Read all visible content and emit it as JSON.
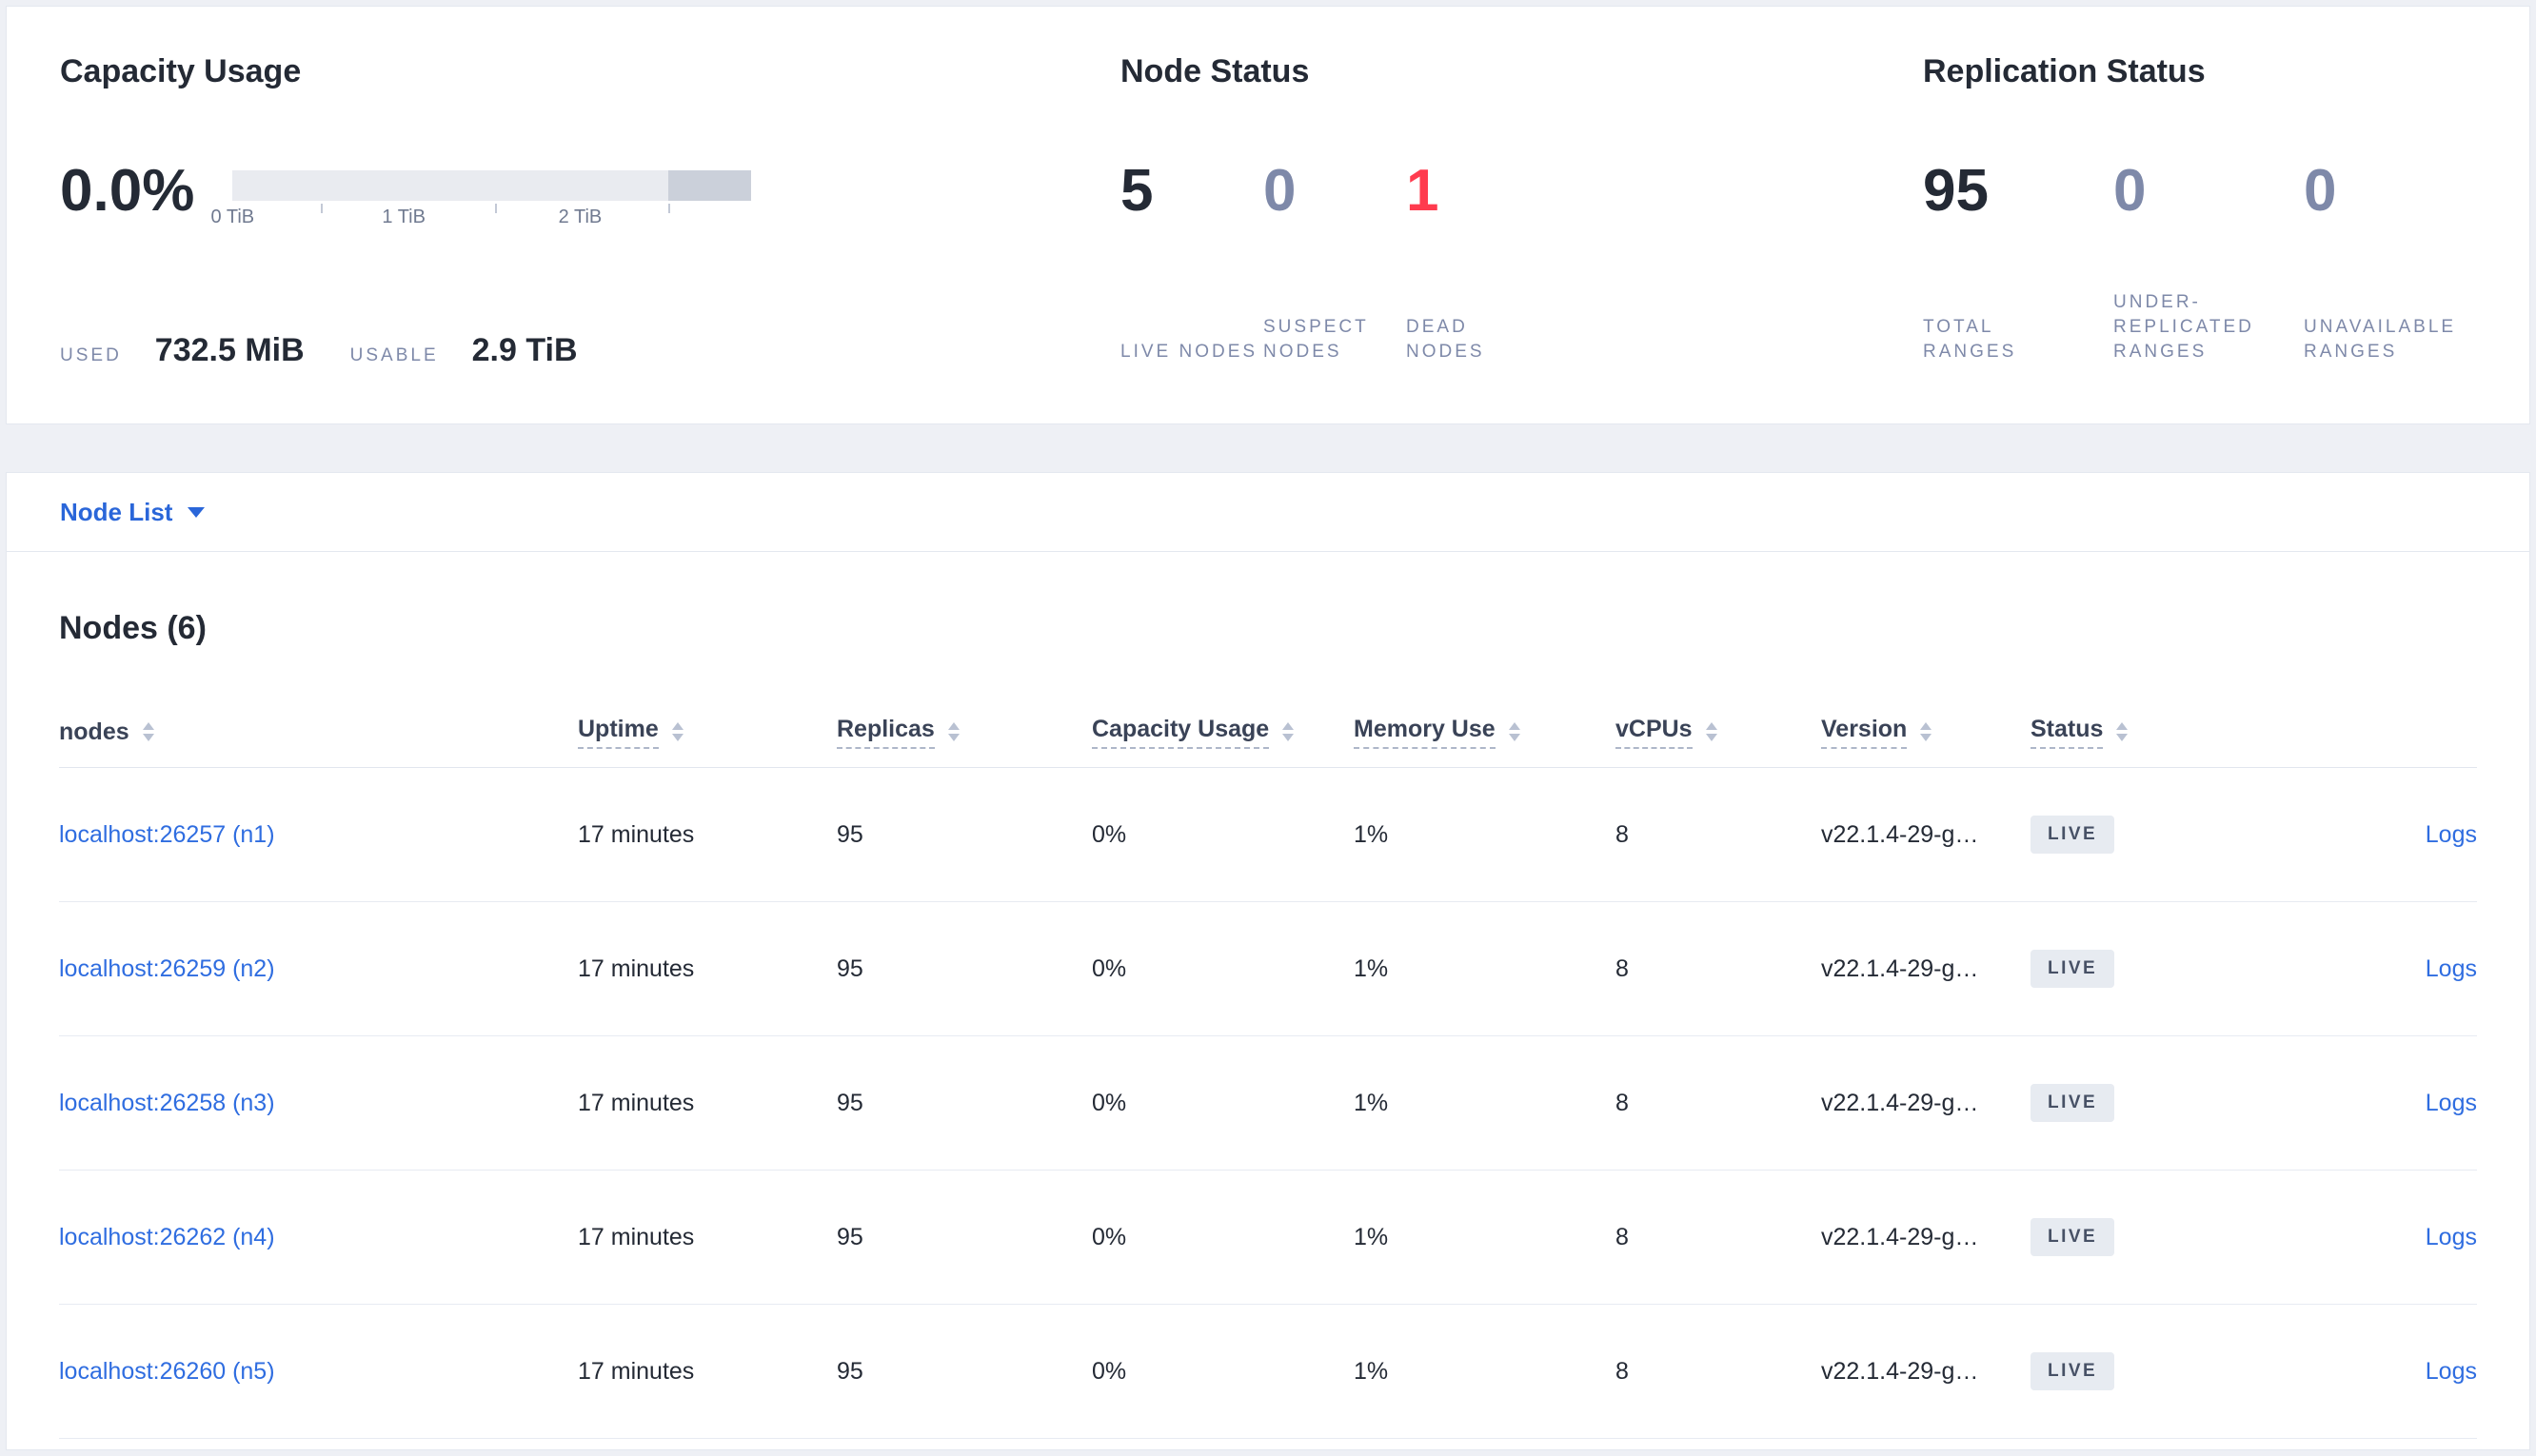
{
  "colors": {
    "link_blue": "#2f6de0",
    "dark_value": "#242a35",
    "muted_value": "#7e89a9",
    "dead_red": "#ff3b4e",
    "badge_bg": "#e7ebf1"
  },
  "capacity": {
    "title": "Capacity Usage",
    "percent": "0.0%",
    "ticks": [
      "0 TiB",
      "1 TiB",
      "2 TiB"
    ],
    "used_label": "USED",
    "used_value": "732.5 MiB",
    "usable_label": "USABLE",
    "usable_value": "2.9 TiB"
  },
  "node_status": {
    "title": "Node Status",
    "stats": [
      {
        "value": "5",
        "label": "LIVE NODES",
        "color": "#242a35"
      },
      {
        "value": "0",
        "label": "SUSPECT NODES",
        "color": "#7e89a9"
      },
      {
        "value": "1",
        "label": "DEAD NODES",
        "color": "#ff3b4e"
      }
    ]
  },
  "replication_status": {
    "title": "Replication Status",
    "stats": [
      {
        "value": "95",
        "label": "TOTAL RANGES",
        "color": "#242a35"
      },
      {
        "value": "0",
        "label": "UNDER-REPLICATED RANGES",
        "color": "#7e89a9"
      },
      {
        "value": "0",
        "label": "UNAVAILABLE RANGES",
        "color": "#7e89a9"
      }
    ]
  },
  "node_list": {
    "label": "Node List"
  },
  "nodes": {
    "title": "Nodes (6)",
    "columns": [
      {
        "label": "nodes"
      },
      {
        "label": "Uptime"
      },
      {
        "label": "Replicas"
      },
      {
        "label": "Capacity Usage"
      },
      {
        "label": "Memory Use"
      },
      {
        "label": "vCPUs"
      },
      {
        "label": "Version"
      },
      {
        "label": "Status"
      }
    ],
    "rows": [
      {
        "node": "localhost:26257 (n1)",
        "uptime": "17 minutes",
        "replicas": "95",
        "capacity_usage": "0%",
        "memory_use": "1%",
        "vcpus": "8",
        "version": "v22.1.4-29-g…",
        "status": "LIVE",
        "logs": "Logs"
      },
      {
        "node": "localhost:26259 (n2)",
        "uptime": "17 minutes",
        "replicas": "95",
        "capacity_usage": "0%",
        "memory_use": "1%",
        "vcpus": "8",
        "version": "v22.1.4-29-g…",
        "status": "LIVE",
        "logs": "Logs"
      },
      {
        "node": "localhost:26258 (n3)",
        "uptime": "17 minutes",
        "replicas": "95",
        "capacity_usage": "0%",
        "memory_use": "1%",
        "vcpus": "8",
        "version": "v22.1.4-29-g…",
        "status": "LIVE",
        "logs": "Logs"
      },
      {
        "node": "localhost:26262 (n4)",
        "uptime": "17 minutes",
        "replicas": "95",
        "capacity_usage": "0%",
        "memory_use": "1%",
        "vcpus": "8",
        "version": "v22.1.4-29-g…",
        "status": "LIVE",
        "logs": "Logs"
      },
      {
        "node": "localhost:26260 (n5)",
        "uptime": "17 minutes",
        "replicas": "95",
        "capacity_usage": "0%",
        "memory_use": "1%",
        "vcpus": "8",
        "version": "v22.1.4-29-g…",
        "status": "LIVE",
        "logs": "Logs"
      }
    ]
  }
}
